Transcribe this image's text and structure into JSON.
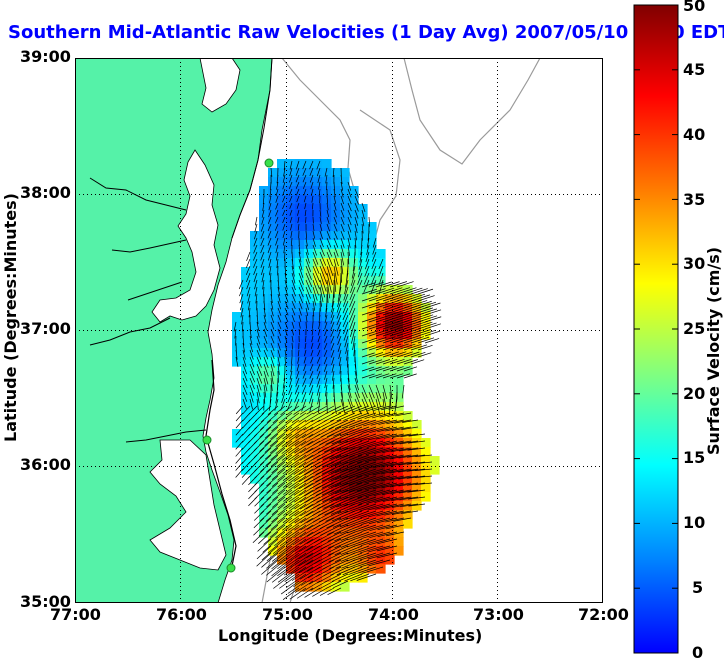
{
  "title": "Southern Mid-Atlantic Raw Velocities (1 Day Avg) 2007/05/10 2200 EDT",
  "map": {
    "xlabel": "Longitude (Degrees:Minutes)",
    "ylabel": "Latitude (Degrees:Minutes)",
    "lon_range": [
      -77,
      -72
    ],
    "lat_range": [
      35,
      39
    ],
    "x_ticks": [
      "77:00",
      "76:00",
      "75:00",
      "74:00",
      "73:00",
      "72:00"
    ],
    "y_ticks": [
      "39:00",
      "38:00",
      "37:00",
      "36:00",
      "35:00"
    ],
    "grid": true,
    "land_color": "#55f2a8",
    "coastline_color": "#000000",
    "bathymetry_color": "#9a9a9a",
    "site_marker_color": "#39e04a"
  },
  "colorbar": {
    "label": "Surface Velocity (cm/s)",
    "min": 0,
    "max": 50,
    "ticks": [
      "50",
      "45",
      "40",
      "35",
      "30",
      "25",
      "20",
      "15",
      "10",
      "5",
      "0"
    ],
    "colormap": "jet",
    "stops": [
      "#0000ff",
      "#0080ff",
      "#00ffff",
      "#80ff80",
      "#ffff00",
      "#ff8000",
      "#ff0000",
      "#800000"
    ]
  }
}
